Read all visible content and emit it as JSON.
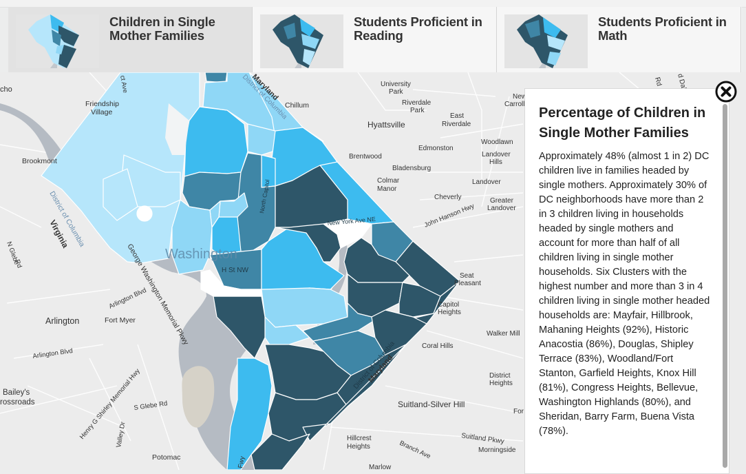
{
  "tabs": [
    {
      "line1": "Children in Single",
      "line2": "Mother Families",
      "active": true
    },
    {
      "line1": "Students Proficient in",
      "line2": "Reading",
      "active": false
    },
    {
      "line1": "Students Proficient in",
      "line2": "Math",
      "active": false
    }
  ],
  "panel": {
    "title": "Percentage of Children in Single Mother Families",
    "body": "Approximately 48% (almost 1 in 2) DC children live in families headed by single mothers. Approximately 30% of DC neighborhoods have more than 2 in 3 children living in households headed by single mothers and account for more than half of all children living in single mother households. Six Clusters with the highest number and more than 3 in 4 children living in single mother headed households are: Mayfair, Hillbrook, Mahaning Heights (92%), Historic Anacostia (86%), Douglas, Shipley Terrace (83%), Woodland/Fort Stanton, Garfield Heights, Knox Hill (81%), Congress Heights, Bellevue, Washington Highlands (80%), and Sheridan, Barry Farm, Buena Vista (78%)."
  },
  "colors": {
    "lightest": "#b6e6fb",
    "light": "#8fd7f6",
    "mid": "#3dbbef",
    "steel": "#3f86a6",
    "dark": "#2e5669",
    "water": "#b5bbc3"
  },
  "icons": {
    "close": "close-circle-icon"
  },
  "map_labels": {
    "washington": "Washington",
    "h_st": "H St NW",
    "virginia": "Virginia",
    "maryland_top": "Maryland",
    "maryland_bottom": "Maryland",
    "district_of_columbia_top": "District of Columbia",
    "district_of_columbia_left": "District of Columbia",
    "district_of_columbia_bottom": "District of Columbia",
    "arlington": "Arlington",
    "fort_myer": "Fort Myer",
    "arlington_blvd": "Arlington Blvd",
    "arlington_blvd2": "Arlington Blvd",
    "brookmont": "Brookmont",
    "friendship_village_1": "Friendship",
    "friendship_village_2": "Village",
    "cho": "cho",
    "n_glebe_1": "N Glebe",
    "n_glebe_2": "Rd",
    "george_washington_pkwy": "George Washington Memorial Pkwy",
    "baileys_1": "Bailey's",
    "baileys_2": "rossroads",
    "henry_shirley": "Henry G Shirley Memorial Hwy",
    "s_glebe": "S Glebe Rd",
    "valley_dr": "Valley Dr",
    "potomac": "Potomac",
    "chillum": "Chillum",
    "university_park_1": "University",
    "university_park_2": "Park",
    "riverdale_park_1": "Riverdale",
    "riverdale_park_2": "Park",
    "hyattsville": "Hyattsville",
    "east_riverdale_1": "East",
    "east_riverdale_2": "Riverdale",
    "brentwood": "Brentwood",
    "edmonston": "Edmonston",
    "bladensburg": "Bladensburg",
    "colmar_manor_1": "Colmar",
    "colmar_manor_2": "Manor",
    "cheverly": "Cheverly",
    "woodlawn": "Woodlawn",
    "landover_hills_1": "Landover",
    "landover_hills_2": "Hills",
    "landover": "Landover",
    "greater_landover_1": "Greater",
    "greater_landover_2": "Landover",
    "new_carrollton_1": "New",
    "new_carrollton_2": "Carroll",
    "john_hanson": "John Hanson Hwy",
    "seat_pleasant_1": "Seat",
    "seat_pleasant_2": "Pleasant",
    "capitol_heights_1": "Capitol",
    "capitol_heights_2": "Heights",
    "coral_hills": "Coral Hills",
    "walker_mill": "Walker Mill",
    "district_heights_1": "District",
    "district_heights_2": "Heights",
    "suitland_silver_hill": "Suitland-Silver Hill",
    "suitland_pkwy": "Suitland Pkwy",
    "hillcrest_heights_1": "Hillcrest",
    "hillcrest_heights_2": "Heights",
    "branch_ave": "Branch Ave",
    "morningside": "Morningside",
    "marlow": "Marlow",
    "fw": "Fwy",
    "ct_ave": "ct Ave",
    "new_york_ave": "New York Ave NE",
    "north_capitol": "North Capitol",
    "sligo_rd": "d Dale",
    "forestville": "For",
    "rd_right": "Rd"
  }
}
